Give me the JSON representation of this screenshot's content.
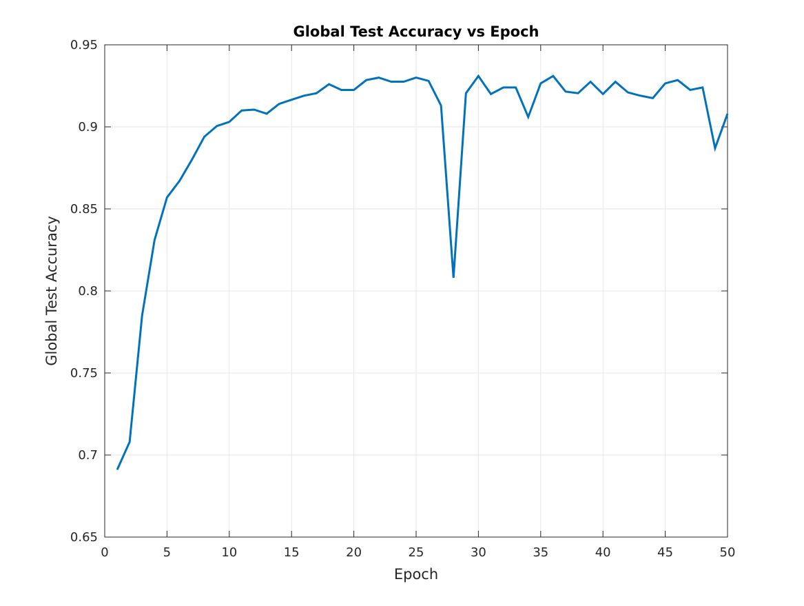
{
  "chart_data": {
    "type": "line",
    "title": "Global Test Accuracy vs Epoch",
    "xlabel": "Epoch",
    "ylabel": "Global Test Accuracy",
    "xlim": [
      0,
      50
    ],
    "ylim": [
      0.65,
      0.95
    ],
    "x_ticks": [
      0,
      5,
      10,
      15,
      20,
      25,
      30,
      35,
      40,
      45,
      50
    ],
    "x_tick_labels": [
      "0",
      "5",
      "10",
      "15",
      "20",
      "25",
      "30",
      "35",
      "40",
      "45",
      "50"
    ],
    "y_ticks": [
      0.65,
      0.7,
      0.75,
      0.8,
      0.85,
      0.9,
      0.95
    ],
    "y_tick_labels": [
      "0.65",
      "0.7",
      "0.75",
      "0.8",
      "0.85",
      "0.9",
      "0.95"
    ],
    "grid": true,
    "legend": "none",
    "colors": {
      "line": "#0072bd",
      "grid": "#e6e6e6",
      "axis": "#262626"
    },
    "series": [
      {
        "x": [
          1,
          2,
          3,
          4,
          5,
          6,
          7,
          8,
          9,
          10,
          11,
          12,
          13,
          14,
          15,
          16,
          17,
          18,
          19,
          20,
          21,
          22,
          23,
          24,
          25,
          26,
          27,
          28,
          29,
          30,
          31,
          32,
          33,
          34,
          35,
          36,
          37,
          38,
          39,
          40,
          41,
          42,
          43,
          44,
          45,
          46,
          47,
          48,
          49,
          50
        ],
        "values": [
          0.691,
          0.708,
          0.785,
          0.831,
          0.857,
          0.867,
          0.88,
          0.894,
          0.9005,
          0.903,
          0.91,
          0.9105,
          0.908,
          0.914,
          0.9165,
          0.919,
          0.9205,
          0.926,
          0.9225,
          0.9225,
          0.9285,
          0.93,
          0.9275,
          0.9275,
          0.93,
          0.928,
          0.913,
          0.808,
          0.9205,
          0.931,
          0.92,
          0.924,
          0.924,
          0.906,
          0.9265,
          0.931,
          0.9215,
          0.9205,
          0.9275,
          0.92,
          0.9275,
          0.921,
          0.919,
          0.9175,
          0.9265,
          0.9285,
          0.9225,
          0.924,
          0.887,
          0.908
        ]
      }
    ]
  }
}
